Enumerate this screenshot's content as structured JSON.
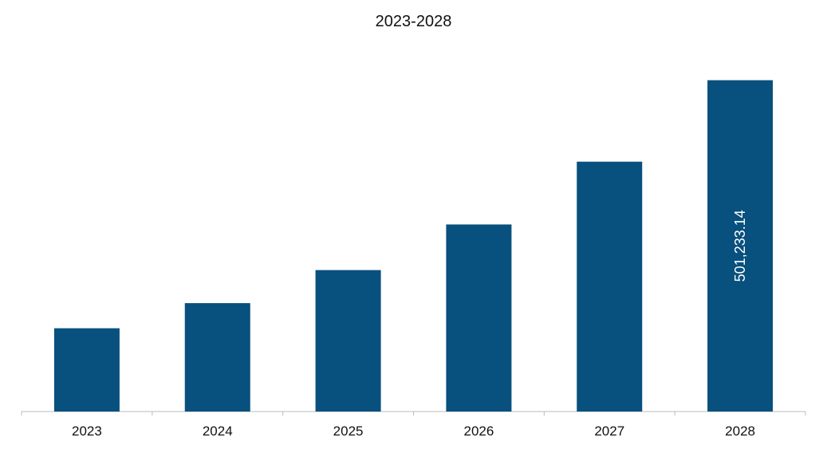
{
  "chart_data": {
    "type": "bar",
    "title": "2023-2028",
    "categories": [
      "2023",
      "2024",
      "2025",
      "2026",
      "2027",
      "2028"
    ],
    "values": [
      126000,
      164000,
      214000,
      283000,
      378000,
      501233.14
    ],
    "data_labels": [
      "",
      "",
      "",
      "",
      "",
      "501,233.14"
    ],
    "ylim": [
      0,
      520000
    ],
    "grid": false,
    "legend": "none",
    "bar_color": "#08507e",
    "axis_color": "#bbbbbb"
  }
}
